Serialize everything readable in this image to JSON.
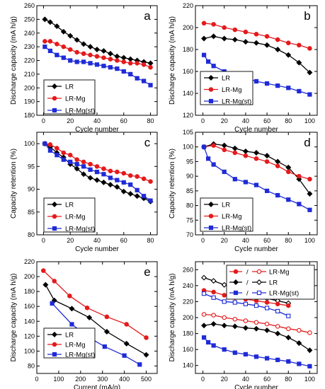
{
  "chart_data": [
    {
      "panel": "a",
      "type": "line",
      "xlabel": "Cycle number",
      "ylabel": "Discharge capacity (mA h/g)",
      "xlim": [
        -5,
        85
      ],
      "ylim": [
        180,
        260
      ],
      "xticks": [
        0,
        20,
        40,
        60,
        80
      ],
      "yticks": [
        180,
        190,
        200,
        210,
        220,
        230,
        240,
        250,
        260
      ],
      "legend_position": "bottom-left",
      "series": [
        {
          "name": "LR",
          "color": "#000000",
          "marker": "diamond",
          "x": [
            1,
            5,
            10,
            15,
            20,
            25,
            30,
            35,
            40,
            45,
            50,
            55,
            60,
            65,
            70,
            75,
            80
          ],
          "y": [
            250,
            248,
            245,
            241,
            238,
            235,
            232,
            230,
            228,
            227,
            225,
            223,
            222,
            221,
            220,
            219,
            218
          ]
        },
        {
          "name": "LR-Mg",
          "color": "#e41a1c",
          "marker": "circle",
          "x": [
            1,
            5,
            10,
            15,
            20,
            25,
            30,
            35,
            40,
            45,
            50,
            55,
            60,
            65,
            70,
            75,
            80
          ],
          "y": [
            234,
            234,
            232,
            230,
            228,
            226,
            225,
            224,
            223,
            222,
            221,
            220,
            219,
            218,
            218,
            217,
            215
          ]
        },
        {
          "name": "LR-Mg(st)",
          "color": "#1f2bd6",
          "marker": "square",
          "x": [
            1,
            5,
            10,
            15,
            20,
            25,
            30,
            35,
            40,
            45,
            50,
            55,
            60,
            65,
            70,
            75,
            80
          ],
          "y": [
            230,
            227,
            224,
            222,
            220,
            219,
            219,
            218,
            217,
            216,
            215,
            214,
            212,
            210,
            207,
            205,
            202
          ]
        }
      ]
    },
    {
      "panel": "b",
      "type": "line",
      "xlabel": "Cycle number",
      "ylabel": "Discharge capacity (mA h/g)",
      "xlim": [
        -7,
        107
      ],
      "ylim": [
        120,
        220
      ],
      "xticks": [
        0,
        20,
        40,
        60,
        80,
        100
      ],
      "yticks": [
        120,
        140,
        160,
        180,
        200,
        220
      ],
      "legend_position": "bottom-left",
      "series": [
        {
          "name": "LR",
          "color": "#000000",
          "marker": "diamond",
          "x": [
            1,
            10,
            20,
            30,
            40,
            50,
            60,
            70,
            80,
            90,
            100
          ],
          "y": [
            190,
            192,
            190,
            189,
            187,
            186,
            184,
            180,
            175,
            168,
            159
          ]
        },
        {
          "name": "LR-Mg",
          "color": "#e41a1c",
          "marker": "circle",
          "x": [
            1,
            10,
            20,
            30,
            40,
            50,
            60,
            70,
            80,
            90,
            100
          ],
          "y": [
            204,
            203,
            200,
            198,
            196,
            194,
            192,
            189,
            186,
            184,
            181
          ]
        },
        {
          "name": "LR-Mg(st)",
          "color": "#1f2bd6",
          "marker": "square",
          "x": [
            1,
            5,
            10,
            20,
            30,
            40,
            50,
            60,
            70,
            80,
            90,
            100
          ],
          "y": [
            175,
            169,
            165,
            160,
            156,
            154,
            151,
            149,
            147,
            145,
            142,
            139
          ]
        }
      ]
    },
    {
      "panel": "c",
      "type": "line",
      "xlabel": "Cycle number",
      "ylabel": "Capacity retention (%)",
      "xlim": [
        -5,
        85
      ],
      "ylim": [
        80,
        102.5
      ],
      "xticks": [
        0,
        20,
        40,
        60,
        80
      ],
      "yticks": [
        80,
        85,
        90,
        95,
        100
      ],
      "legend_position": "bottom-left",
      "series": [
        {
          "name": "LR",
          "color": "#000000",
          "marker": "diamond",
          "x": [
            1,
            5,
            10,
            15,
            20,
            25,
            30,
            35,
            40,
            45,
            50,
            55,
            60,
            65,
            70,
            75,
            80
          ],
          "y": [
            100,
            99.3,
            98,
            97,
            95.5,
            94.5,
            93.3,
            92.5,
            92,
            91.5,
            91,
            90.5,
            89.5,
            89,
            88.5,
            88,
            87.3
          ]
        },
        {
          "name": "LR-Mg",
          "color": "#e41a1c",
          "marker": "circle",
          "x": [
            1,
            5,
            10,
            15,
            20,
            25,
            30,
            35,
            40,
            45,
            50,
            55,
            60,
            65,
            70,
            75,
            80
          ],
          "y": [
            100,
            99.8,
            99,
            98,
            97.5,
            96.5,
            96,
            95.5,
            95,
            94.5,
            94,
            93.8,
            93.5,
            93,
            92.8,
            92.3,
            91.7
          ]
        },
        {
          "name": "LR-Mg(st)",
          "color": "#1f2bd6",
          "marker": "square",
          "x": [
            1,
            5,
            10,
            15,
            20,
            25,
            30,
            35,
            40,
            45,
            50,
            55,
            60,
            65,
            70,
            75,
            80
          ],
          "y": [
            100,
            98.5,
            97.5,
            96.5,
            96,
            95.5,
            95,
            94.3,
            93.8,
            93.3,
            92.5,
            92,
            91.5,
            91,
            89.8,
            88.5,
            87.5
          ]
        }
      ]
    },
    {
      "panel": "d",
      "type": "line",
      "xlabel": "Cycle number",
      "ylabel": "Capacity retention (%)",
      "xlim": [
        -7,
        107
      ],
      "ylim": [
        70,
        105
      ],
      "xticks": [
        0,
        20,
        40,
        60,
        80,
        100
      ],
      "yticks": [
        70,
        75,
        80,
        85,
        90,
        95,
        100,
        105
      ],
      "legend_position": "bottom-left",
      "series": [
        {
          "name": "LR",
          "color": "#000000",
          "marker": "diamond",
          "x": [
            1,
            10,
            20,
            30,
            40,
            50,
            60,
            70,
            80,
            90,
            100
          ],
          "y": [
            100,
            101,
            100.5,
            99.5,
            98.5,
            98,
            97,
            95,
            93,
            89,
            84
          ]
        },
        {
          "name": "LR-Mg",
          "color": "#e41a1c",
          "marker": "circle",
          "x": [
            1,
            10,
            20,
            30,
            40,
            50,
            60,
            70,
            80,
            90,
            100
          ],
          "y": [
            100,
            100.5,
            99,
            98,
            97,
            96,
            95,
            93.5,
            91.5,
            90,
            89
          ]
        },
        {
          "name": "LR-Mg(st)",
          "color": "#1f2bd6",
          "marker": "square",
          "x": [
            1,
            5,
            10,
            20,
            30,
            40,
            50,
            60,
            70,
            80,
            90,
            100
          ],
          "y": [
            100,
            96,
            94,
            91.5,
            89,
            88,
            87,
            85,
            83.5,
            82,
            80.5,
            78.5
          ]
        }
      ]
    },
    {
      "panel": "e",
      "type": "line",
      "xlabel": "Current (mA/g)",
      "ylabel": "Discharge capacity (mA h/g)",
      "xlim": [
        0,
        550
      ],
      "ylim": [
        70,
        220
      ],
      "xticks": [
        0,
        100,
        200,
        300,
        400,
        500
      ],
      "yticks": [
        80,
        100,
        120,
        140,
        160,
        180,
        200,
        220
      ],
      "legend_position": "bottom-left",
      "series": [
        {
          "name": "LR",
          "color": "#000000",
          "marker": "diamond",
          "x": [
            40,
            80,
            160,
            240,
            320,
            410,
            500
          ],
          "y": [
            189,
            168,
            157,
            145,
            126,
            110,
            95
          ]
        },
        {
          "name": "LR-Mg",
          "color": "#e41a1c",
          "marker": "circle",
          "x": [
            30,
            80,
            150,
            230,
            320,
            410,
            500
          ],
          "y": [
            208,
            194,
            174,
            158,
            146,
            136,
            118
          ]
        },
        {
          "name": "LR-Mg(st)",
          "color": "#1f2bd6",
          "marker": "square",
          "x": [
            70,
            160,
            240,
            310,
            400,
            470
          ],
          "y": [
            164,
            136,
            118,
            106,
            94,
            82
          ]
        }
      ]
    },
    {
      "panel": "f",
      "type": "line",
      "xlabel": "Cycle number",
      "ylabel": "Discharge capacity (mA h/g)",
      "xlim": [
        -7,
        107
      ],
      "ylim": [
        130,
        270
      ],
      "xticks": [
        0,
        20,
        40,
        60,
        80,
        100
      ],
      "yticks": [
        140,
        160,
        180,
        200,
        220,
        240,
        260
      ],
      "legend_position": "top-right",
      "legend_entries": [
        {
          "name": "LR-Mg",
          "color": "#e41a1c",
          "filled": "circle",
          "open": "circle"
        },
        {
          "name": "LR",
          "color": "#000000",
          "filled": "diamond",
          "open": "diamond"
        },
        {
          "name": "LR-Mg(st)",
          "color": "#1f2bd6",
          "filled": "square",
          "open": "square"
        }
      ],
      "separator": "/",
      "series": [
        {
          "color": "#000000",
          "marker": "diamond",
          "filled": false,
          "x": [
            1,
            10,
            20,
            30,
            40,
            50,
            60,
            70,
            80
          ],
          "y": [
            250,
            246,
            241,
            236,
            232,
            228,
            224,
            221,
            218
          ]
        },
        {
          "color": "#e41a1c",
          "marker": "circle",
          "filled": true,
          "x": [
            1,
            10,
            20,
            30,
            40,
            50,
            60,
            70,
            80
          ],
          "y": [
            234,
            232,
            228,
            225,
            223,
            221,
            219,
            217,
            215
          ]
        },
        {
          "color": "#1f2bd6",
          "marker": "square",
          "filled": false,
          "x": [
            1,
            10,
            20,
            30,
            40,
            50,
            60,
            70,
            80
          ],
          "y": [
            230,
            225,
            220,
            219,
            217,
            215,
            212,
            208,
            202
          ]
        },
        {
          "color": "#e41a1c",
          "marker": "circle",
          "filled": false,
          "x": [
            1,
            10,
            20,
            30,
            40,
            50,
            60,
            70,
            80,
            90,
            100
          ],
          "y": [
            204,
            203,
            200,
            198,
            196,
            194,
            192,
            189,
            186,
            184,
            181
          ]
        },
        {
          "color": "#000000",
          "marker": "diamond",
          "filled": true,
          "x": [
            1,
            10,
            20,
            30,
            40,
            50,
            60,
            70,
            80,
            90,
            100
          ],
          "y": [
            190,
            192,
            190,
            189,
            187,
            186,
            184,
            180,
            175,
            168,
            159
          ]
        },
        {
          "color": "#1f2bd6",
          "marker": "square",
          "filled": true,
          "x": [
            1,
            5,
            10,
            20,
            30,
            40,
            50,
            60,
            70,
            80,
            90,
            100
          ],
          "y": [
            175,
            169,
            165,
            160,
            156,
            154,
            151,
            149,
            147,
            145,
            142,
            139
          ]
        }
      ]
    }
  ]
}
